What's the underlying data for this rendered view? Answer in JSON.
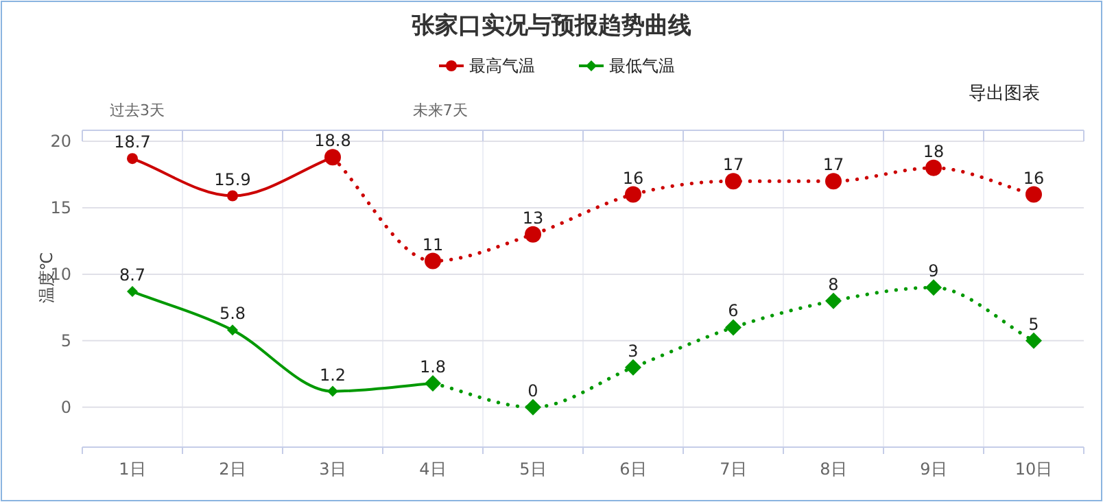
{
  "chart_data": {
    "type": "line",
    "title": "张家口实况与预报趋势曲线",
    "ylabel": "温度℃",
    "categories": [
      "1日",
      "2日",
      "3日",
      "4日",
      "5日",
      "6日",
      "7日",
      "8日",
      "9日",
      "10日"
    ],
    "series": [
      {
        "name": "最高气温",
        "color": "#cc0000",
        "marker": "circle",
        "line_style": "solid",
        "values": [
          18.7,
          15.9,
          18.8,
          null,
          null,
          null,
          null,
          null,
          null,
          null
        ],
        "value_labels": [
          "18.7",
          "15.9",
          "18.8",
          null,
          null,
          null,
          null,
          null,
          null,
          null
        ]
      },
      {
        "color": "#cc0000",
        "marker": "circle",
        "line_style": "dotted",
        "values": [
          null,
          null,
          18.8,
          11,
          13,
          16,
          17,
          17,
          18,
          16
        ],
        "value_labels": [
          null,
          null,
          null,
          "11",
          "13",
          "16",
          "17",
          "17",
          "18",
          "16"
        ]
      },
      {
        "name": "最低气温",
        "color": "#009900",
        "marker": "diamond",
        "line_style": "solid",
        "values": [
          8.7,
          5.8,
          1.2,
          1.8,
          null,
          null,
          null,
          null,
          null,
          null
        ],
        "value_labels": [
          "8.7",
          "5.8",
          "1.2",
          "1.8",
          null,
          null,
          null,
          null,
          null,
          null
        ]
      },
      {
        "color": "#009900",
        "marker": "diamond",
        "line_style": "dotted",
        "values": [
          null,
          null,
          null,
          1.8,
          0,
          3,
          6,
          8,
          9,
          5
        ],
        "value_labels": [
          null,
          null,
          null,
          null,
          "0",
          "3",
          "6",
          "8",
          "9",
          "5"
        ]
      }
    ],
    "ylim": [
      -3,
      20
    ],
    "yticks": [
      0,
      5,
      10,
      15,
      20
    ],
    "grid": true,
    "legend": "top",
    "annotations": [
      "过去3天",
      "未来7天",
      "导出图表"
    ]
  }
}
